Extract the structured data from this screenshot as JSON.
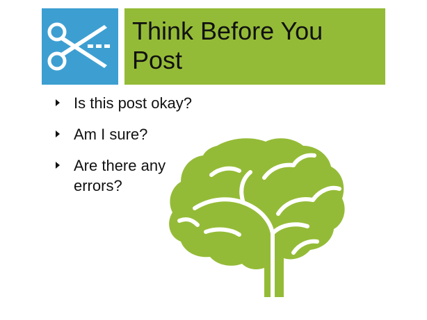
{
  "title": "Think Before You Post",
  "bullets": [
    "Is this post okay?",
    "Am I sure?",
    "Are there any errors?"
  ],
  "icons": {
    "header_icon": "scissors-icon",
    "illustration": "brain-icon"
  },
  "colors": {
    "icon_background": "#3d9fd1",
    "title_background": "#94bb37",
    "brain": "#94bb37",
    "text": "#111111"
  }
}
